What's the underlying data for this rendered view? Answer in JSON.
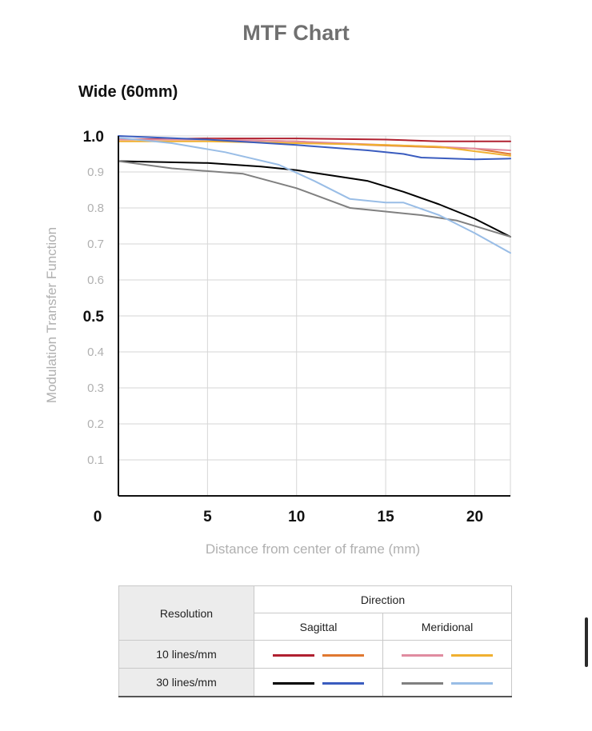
{
  "page": {
    "title": "MTF Chart"
  },
  "chart_data": {
    "type": "line",
    "title": "Wide (60mm)",
    "xlabel": "Distance from center of frame (mm)",
    "ylabel": "Modulation Transfer Function",
    "xlim": [
      0,
      22
    ],
    "ylim": [
      0,
      1.0
    ],
    "xticks": [
      "0",
      "5",
      "10",
      "15",
      "20"
    ],
    "yticks": [
      "1.0",
      "0.9",
      "0.8",
      "0.7",
      "0.6",
      "0.5",
      "0.4",
      "0.3",
      "0.2",
      "0.1"
    ],
    "grid": true,
    "series": [
      {
        "color": "#b02030",
        "x": [
          0,
          5,
          10,
          15,
          18,
          22
        ],
        "y": [
          0.99,
          0.993,
          0.993,
          0.99,
          0.985,
          0.985
        ]
      },
      {
        "color": "#e07830",
        "x": [
          0,
          5,
          10,
          14,
          17,
          20,
          22
        ],
        "y": [
          0.99,
          0.99,
          0.985,
          0.975,
          0.97,
          0.965,
          0.95
        ]
      },
      {
        "color": "#e08ca0",
        "x": [
          0,
          5,
          10,
          15,
          18,
          22
        ],
        "y": [
          0.99,
          0.99,
          0.985,
          0.975,
          0.97,
          0.96
        ]
      },
      {
        "color": "#f0b030",
        "x": [
          0,
          5,
          10,
          15,
          18,
          22
        ],
        "y": [
          0.985,
          0.985,
          0.98,
          0.975,
          0.97,
          0.945
        ]
      },
      {
        "color": "#000000",
        "x": [
          0,
          5,
          8,
          10,
          12,
          14,
          16,
          18,
          20,
          22
        ],
        "y": [
          0.93,
          0.925,
          0.915,
          0.905,
          0.89,
          0.875,
          0.845,
          0.81,
          0.77,
          0.72
        ]
      },
      {
        "color": "#3a5cbf",
        "x": [
          0,
          5,
          10,
          14,
          16,
          17,
          20,
          22
        ],
        "y": [
          1.0,
          0.99,
          0.975,
          0.96,
          0.95,
          0.94,
          0.935,
          0.937
        ]
      },
      {
        "color": "#808080",
        "x": [
          0,
          3,
          7,
          10,
          13,
          15,
          17,
          19,
          22
        ],
        "y": [
          0.93,
          0.91,
          0.895,
          0.855,
          0.8,
          0.79,
          0.78,
          0.765,
          0.72
        ]
      },
      {
        "color": "#99bde6",
        "x": [
          0,
          3,
          6,
          9,
          11,
          13,
          15,
          16,
          18,
          20,
          22
        ],
        "y": [
          0.995,
          0.98,
          0.955,
          0.92,
          0.875,
          0.825,
          0.815,
          0.815,
          0.78,
          0.73,
          0.675
        ]
      }
    ]
  },
  "legend": {
    "resolution_header": "Resolution",
    "direction_header": "Direction",
    "sagittal": "Sagittal",
    "meridional": "Meridional",
    "row_10": "10 lines/mm",
    "row_30": "30 lines/mm",
    "colors": {
      "s10_a": "#b02030",
      "s10_b": "#e07830",
      "m10_a": "#e08ca0",
      "m10_b": "#f0b030",
      "s30_a": "#000000",
      "s30_b": "#3a5cbf",
      "m30_a": "#808080",
      "m30_b": "#99bde6"
    }
  }
}
